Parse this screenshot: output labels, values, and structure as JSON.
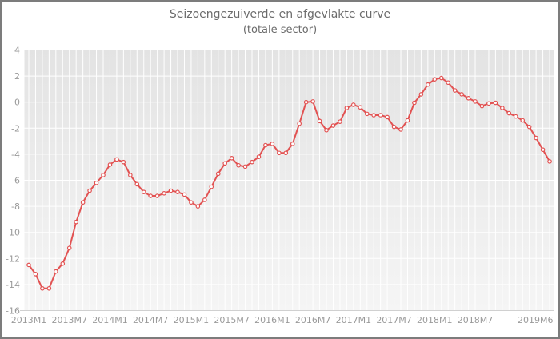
{
  "chart": {
    "title": "Seizoengezuiverde en afgevlakte curve",
    "subtitle": "(totale sector)"
  },
  "chart_data": {
    "type": "line",
    "title": "Seizoengezuiverde en afgevlakte curve",
    "subtitle": "(totale sector)",
    "x_frequency": "monthly",
    "x_start": "2013M1",
    "x_end": "2019M6",
    "x_tick_labels": [
      "2013M1",
      "2013M7",
      "2014M1",
      "2014M7",
      "2015M1",
      "2015M7",
      "2016M1",
      "2016M7",
      "2017M1",
      "2017M7",
      "2018M1",
      "2018M7",
      "2019M6"
    ],
    "y_ticks": [
      4,
      2,
      0,
      -2,
      -4,
      -6,
      -8,
      -10,
      -12,
      -14,
      -16
    ],
    "ylim": [
      -16,
      4
    ],
    "grid": true,
    "legend": "none",
    "series": [
      {
        "name": "Seizoengezuiverde en afgevlakte curve (totale sector)",
        "color": "#e25252",
        "marker": "open-circle",
        "values": [
          -12.5,
          -13.2,
          -14.3,
          -14.3,
          -13.0,
          -12.4,
          -11.2,
          -9.2,
          -7.7,
          -6.8,
          -6.2,
          -5.6,
          -4.8,
          -4.4,
          -4.6,
          -5.6,
          -6.3,
          -6.9,
          -7.2,
          -7.2,
          -7.0,
          -6.8,
          -6.9,
          -7.1,
          -7.7,
          -8.0,
          -7.5,
          -6.5,
          -5.5,
          -4.7,
          -4.3,
          -4.85,
          -4.95,
          -4.6,
          -4.2,
          -3.3,
          -3.2,
          -3.9,
          -3.9,
          -3.2,
          -1.65,
          0.0,
          0.05,
          -1.45,
          -2.15,
          -1.8,
          -1.5,
          -0.45,
          -0.2,
          -0.4,
          -0.9,
          -1.0,
          -1.0,
          -1.15,
          -1.9,
          -2.1,
          -1.4,
          -0.05,
          0.6,
          1.35,
          1.75,
          1.85,
          1.5,
          0.9,
          0.6,
          0.3,
          0.05,
          -0.3,
          -0.1,
          -0.05,
          -0.45,
          -0.85,
          -1.1,
          -1.4,
          -1.9,
          -2.75,
          -3.65,
          -4.55
        ]
      }
    ],
    "colors": {
      "line": "#e25252",
      "plot_bg_top": "#e3e3e3",
      "plot_bg_bottom": "#f5f5f5",
      "gridline": "#ffffff",
      "axis_line": "#d0d0d0",
      "tick_label": "#9a9a9a",
      "title_text": "#6b6b6b",
      "frame_border": "#7c7c7c"
    }
  }
}
